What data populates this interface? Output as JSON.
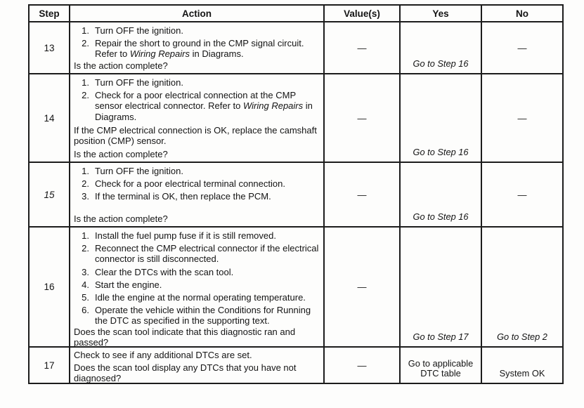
{
  "colors": {
    "border": "#1c1c1c",
    "text": "#141414",
    "background": "#fdfdfc"
  },
  "table": {
    "headers": [
      "Step",
      "Action",
      "Value(s)",
      "Yes",
      "No"
    ],
    "rows": [
      {
        "step": "13",
        "items": [
          {
            "num": "1.",
            "parts": [
              {
                "text": "Turn OFF the ignition."
              }
            ]
          },
          {
            "num": "2.",
            "parts": [
              {
                "text": "Repair the short to ground in the CMP signal circuit. Refer to "
              },
              {
                "text": "Wiring Repairs",
                "italic": true
              },
              {
                "text": " in Diagrams."
              }
            ]
          }
        ],
        "question": "Is the action complete?",
        "value": "—",
        "yes": "Go to Step 16",
        "no": "—"
      },
      {
        "step": "14",
        "items": [
          {
            "num": "1.",
            "parts": [
              {
                "text": "Turn OFF the ignition."
              }
            ]
          },
          {
            "num": "2.",
            "parts": [
              {
                "text": "Check for a poor electrical connection at the CMP sensor electrical connector. Refer to "
              },
              {
                "text": "Wiring Repairs",
                "italic": true
              },
              {
                "text": " in Diagrams."
              }
            ]
          }
        ],
        "note": "If the CMP electrical connection is OK, replace the camshaft position (CMP) sensor.",
        "question": "Is the action complete?",
        "value": "—",
        "yes": "Go to Step 16",
        "no": "—"
      },
      {
        "step": "15",
        "items": [
          {
            "num": "1.",
            "parts": [
              {
                "text": "Turn OFF the ignition."
              }
            ]
          },
          {
            "num": "2.",
            "parts": [
              {
                "text": "Check for a poor electrical terminal connection."
              }
            ]
          },
          {
            "num": "3.",
            "parts": [
              {
                "text": "If the terminal is OK, then replace the PCM."
              }
            ]
          }
        ],
        "question": "Is the action complete?",
        "value": "—",
        "yes": "Go to Step 16",
        "no": "—"
      },
      {
        "step": "16",
        "items": [
          {
            "num": "1.",
            "parts": [
              {
                "text": "Install the fuel pump fuse if it is still removed."
              }
            ]
          },
          {
            "num": "2.",
            "parts": [
              {
                "text": "Reconnect the CMP electrical connector if the electrical connector is still disconnected."
              }
            ]
          },
          {
            "num": "3.",
            "parts": [
              {
                "text": "Clear the DTCs with the scan tool."
              }
            ]
          },
          {
            "num": "4.",
            "parts": [
              {
                "text": "Start the engine."
              }
            ]
          },
          {
            "num": "5.",
            "parts": [
              {
                "text": "Idle the engine at the normal operating temperature."
              }
            ]
          },
          {
            "num": "6.",
            "parts": [
              {
                "text": "Operate the vehicle within the Conditions for Running the DTC as specified in the supporting text."
              }
            ]
          }
        ],
        "question": "Does the scan tool indicate that this diagnostic ran and passed?",
        "value": "—",
        "yes": "Go to Step 17",
        "no": "Go to Step 2"
      },
      {
        "step": "17",
        "note": "Check to see if any additional DTCs are set.",
        "question": "Does the scan tool display any DTCs that you have not diagnosed?",
        "value": "—",
        "yes": "Go to applicable DTC table",
        "no": "System OK"
      }
    ]
  }
}
